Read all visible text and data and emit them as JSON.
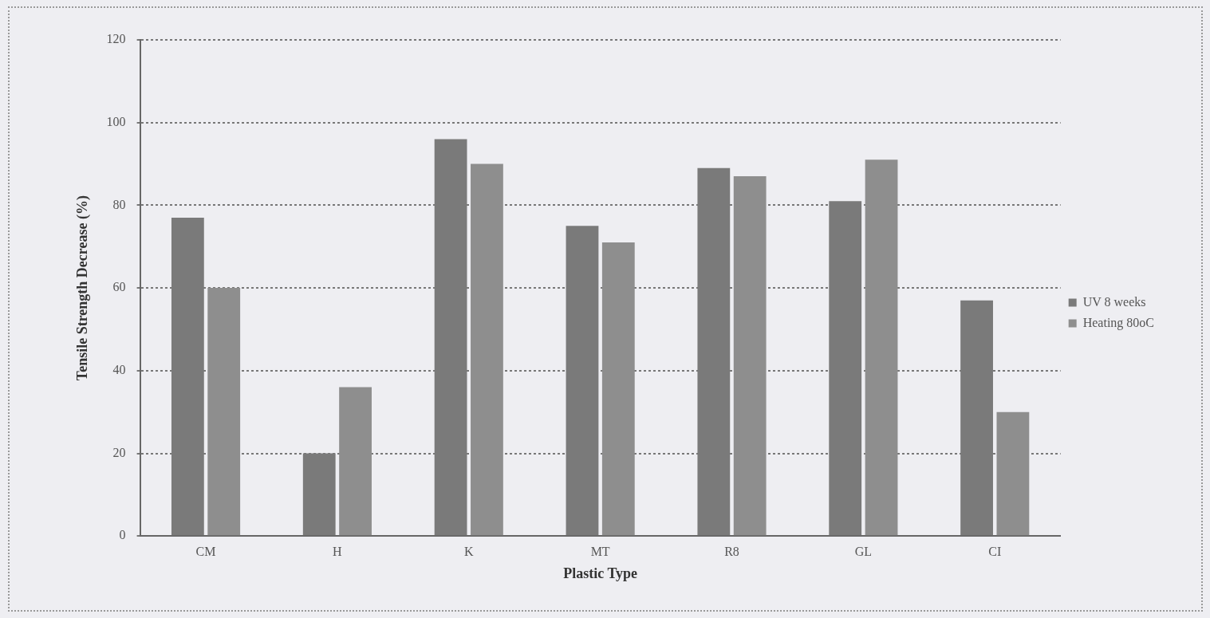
{
  "chart_data": {
    "type": "bar",
    "xlabel": "Plastic Type",
    "ylabel": "Tensile Strength Decrease (%)",
    "categories": [
      "CM",
      "H",
      "K",
      "MT",
      "R8",
      "GL",
      "CI"
    ],
    "series": [
      {
        "name": "UV 8 weeks",
        "color": "#7a7a7a",
        "values": [
          77,
          20,
          96,
          75,
          89,
          81,
          57
        ]
      },
      {
        "name": "Heating 80oC",
        "color": "#8e8e8e",
        "values": [
          60,
          36,
          90,
          71,
          87,
          91,
          30
        ]
      }
    ],
    "ylim": [
      0,
      120
    ],
    "yticks": [
      0,
      20,
      40,
      60,
      80,
      100,
      120
    ],
    "grid": "y",
    "legend": "right"
  }
}
